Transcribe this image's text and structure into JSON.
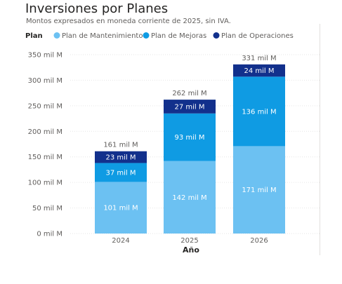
{
  "chart_data": {
    "type": "bar",
    "stacked": true,
    "title": "Inversiones por Planes",
    "subtitle": "Montos expresados en moneda corriente de 2025, sin IVA.",
    "legend_title": "Plan",
    "legend_position": "top-left",
    "xlabel": "Año",
    "ylabel": "",
    "categories": [
      "2024",
      "2025",
      "2026"
    ],
    "ylim": [
      0,
      350
    ],
    "y_ticks": [
      0,
      50,
      100,
      150,
      200,
      250,
      300,
      350
    ],
    "y_tick_labels": [
      "0 mil M",
      "50 mil M",
      "100 mil M",
      "150 mil M",
      "200 mil M",
      "250 mil M",
      "300 mil M",
      "350 mil M"
    ],
    "grid": true,
    "series": [
      {
        "name": "Plan de Mantenimiento",
        "color": "#6cc1f2",
        "label_color": "#ffffff",
        "values": [
          101,
          142,
          171
        ],
        "labels": [
          "101 mil M",
          "142 mil M",
          "171 mil M"
        ]
      },
      {
        "name": "Plan de Mejoras",
        "color": "#0f9be3",
        "label_color": "#ffffff",
        "values": [
          37,
          93,
          136
        ],
        "labels": [
          "37 mil M",
          "93 mil M",
          "136 mil M"
        ]
      },
      {
        "name": "Plan de Operaciones",
        "color": "#12308c",
        "label_color": "#ffffff",
        "values": [
          23,
          27,
          24
        ],
        "labels": [
          "23 mil M",
          "27 mil M",
          "24 mil M"
        ]
      }
    ],
    "totals": [
      161,
      262,
      331
    ],
    "total_labels": [
      "161 mil M",
      "262 mil M",
      "331 mil M"
    ]
  }
}
